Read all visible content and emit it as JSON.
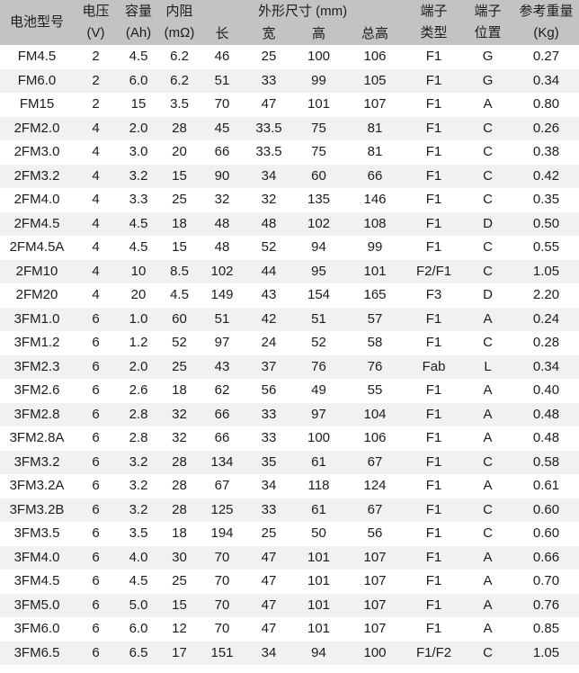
{
  "colors": {
    "header_bg": "#c3c3c3",
    "row_stripe": "#f1f1f1",
    "text": "#1c1c1c"
  },
  "table": {
    "header": {
      "model": "电池型号",
      "voltage_name": "电压",
      "voltage_unit": "(V)",
      "capacity_name": "容量",
      "capacity_unit": "(Ah)",
      "resistance_name": "内阻",
      "resistance_unit": "(mΩ)",
      "dimensions_group": "外形尺寸 (mm)",
      "dim_length": "长",
      "dim_width": "宽",
      "dim_height": "高",
      "dim_total_height": "总高",
      "terminal_type_line1": "端子",
      "terminal_type_line2": "类型",
      "terminal_pos_line1": "端子",
      "terminal_pos_line2": "位置",
      "weight_name": "参考重量",
      "weight_unit": "(Kg)"
    },
    "column_keys": [
      "model",
      "voltage",
      "capacity",
      "resistance",
      "length",
      "width",
      "height",
      "total-height",
      "terminal-type",
      "terminal-position",
      "weight"
    ],
    "rows": [
      [
        "FM4.5",
        "2",
        "4.5",
        "6.2",
        "46",
        "25",
        "100",
        "106",
        "F1",
        "G",
        "0.27"
      ],
      [
        "FM6.0",
        "2",
        "6.0",
        "6.2",
        "51",
        "33",
        "99",
        "105",
        "F1",
        "G",
        "0.34"
      ],
      [
        "FM15",
        "2",
        "15",
        "3.5",
        "70",
        "47",
        "101",
        "107",
        "F1",
        "A",
        "0.80"
      ],
      [
        "2FM2.0",
        "4",
        "2.0",
        "28",
        "45",
        "33.5",
        "75",
        "81",
        "F1",
        "C",
        "0.26"
      ],
      [
        "2FM3.0",
        "4",
        "3.0",
        "20",
        "66",
        "33.5",
        "75",
        "81",
        "F1",
        "C",
        "0.38"
      ],
      [
        "2FM3.2",
        "4",
        "3.2",
        "15",
        "90",
        "34",
        "60",
        "66",
        "F1",
        "C",
        "0.42"
      ],
      [
        "2FM4.0",
        "4",
        "3.3",
        "25",
        "32",
        "32",
        "135",
        "146",
        "F1",
        "C",
        "0.35"
      ],
      [
        "2FM4.5",
        "4",
        "4.5",
        "18",
        "48",
        "48",
        "102",
        "108",
        "F1",
        "D",
        "0.50"
      ],
      [
        "2FM4.5A",
        "4",
        "4.5",
        "15",
        "48",
        "52",
        "94",
        "99",
        "F1",
        "C",
        "0.55"
      ],
      [
        "2FM10",
        "4",
        "10",
        "8.5",
        "102",
        "44",
        "95",
        "101",
        "F2/F1",
        "C",
        "1.05"
      ],
      [
        "2FM20",
        "4",
        "20",
        "4.5",
        "149",
        "43",
        "154",
        "165",
        "F3",
        "D",
        "2.20"
      ],
      [
        "3FM1.0",
        "6",
        "1.0",
        "60",
        "51",
        "42",
        "51",
        "57",
        "F1",
        "A",
        "0.24"
      ],
      [
        "3FM1.2",
        "6",
        "1.2",
        "52",
        "97",
        "24",
        "52",
        "58",
        "F1",
        "C",
        "0.28"
      ],
      [
        "3FM2.3",
        "6",
        "2.0",
        "25",
        "43",
        "37",
        "76",
        "76",
        "Fab",
        "L",
        "0.34"
      ],
      [
        "3FM2.6",
        "6",
        "2.6",
        "18",
        "62",
        "56",
        "49",
        "55",
        "F1",
        "A",
        "0.40"
      ],
      [
        "3FM2.8",
        "6",
        "2.8",
        "32",
        "66",
        "33",
        "97",
        "104",
        "F1",
        "A",
        "0.48"
      ],
      [
        "3FM2.8A",
        "6",
        "2.8",
        "32",
        "66",
        "33",
        "100",
        "106",
        "F1",
        "A",
        "0.48"
      ],
      [
        "3FM3.2",
        "6",
        "3.2",
        "28",
        "134",
        "35",
        "61",
        "67",
        "F1",
        "C",
        "0.58"
      ],
      [
        "3FM3.2A",
        "6",
        "3.2",
        "28",
        "67",
        "34",
        "118",
        "124",
        "F1",
        "A",
        "0.61"
      ],
      [
        "3FM3.2B",
        "6",
        "3.2",
        "28",
        "125",
        "33",
        "61",
        "67",
        "F1",
        "C",
        "0.60"
      ],
      [
        "3FM3.5",
        "6",
        "3.5",
        "18",
        "194",
        "25",
        "50",
        "56",
        "F1",
        "C",
        "0.60"
      ],
      [
        "3FM4.0",
        "6",
        "4.0",
        "30",
        "70",
        "47",
        "101",
        "107",
        "F1",
        "A",
        "0.66"
      ],
      [
        "3FM4.5",
        "6",
        "4.5",
        "25",
        "70",
        "47",
        "101",
        "107",
        "F1",
        "A",
        "0.70"
      ],
      [
        "3FM5.0",
        "6",
        "5.0",
        "15",
        "70",
        "47",
        "101",
        "107",
        "F1",
        "A",
        "0.76"
      ],
      [
        "3FM6.0",
        "6",
        "6.0",
        "12",
        "70",
        "47",
        "101",
        "107",
        "F1",
        "A",
        "0.85"
      ],
      [
        "3FM6.5",
        "6",
        "6.5",
        "17",
        "151",
        "34",
        "94",
        "100",
        "F1/F2",
        "C",
        "1.05"
      ]
    ]
  }
}
